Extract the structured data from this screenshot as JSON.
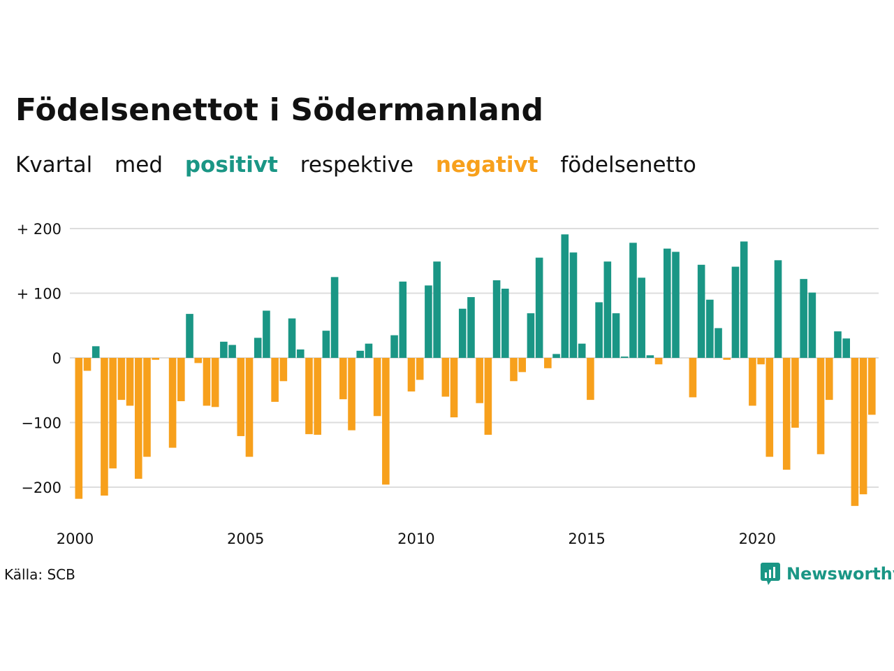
{
  "title": "Födelsenettot i Södermanland",
  "subtitle": {
    "w1": "Kvartal",
    "w2": "med",
    "positive": "positivt",
    "w3": "respektive",
    "negative": "negativt",
    "w4": "födelsenetto"
  },
  "source": "Källa: SCB",
  "brand": "Newsworthy",
  "colors": {
    "positive": "#1a9685",
    "negative": "#f7a01c",
    "grid": "#dddddd"
  },
  "chart_data": {
    "type": "bar",
    "title": "Födelsenettot i Södermanland",
    "xlabel": "",
    "ylabel": "",
    "ylim": [
      -230,
      210
    ],
    "yticks": [
      200,
      100,
      0,
      -100,
      -200
    ],
    "ytick_labels": [
      "+ 200",
      "+ 100",
      "0",
      "−100",
      "−200"
    ],
    "xticks": [
      2000,
      2005,
      2010,
      2015,
      2020
    ],
    "x_start": 2000,
    "values": [
      -218,
      -20,
      18,
      -213,
      -171,
      -65,
      -74,
      -187,
      -153,
      -3,
      0,
      -139,
      -67,
      68,
      -8,
      -74,
      -76,
      25,
      20,
      -121,
      -153,
      31,
      73,
      -68,
      -36,
      61,
      13,
      -118,
      -119,
      42,
      125,
      -64,
      -112,
      11,
      22,
      -90,
      -196,
      35,
      118,
      -52,
      -34,
      112,
      149,
      -60,
      -92,
      76,
      94,
      -70,
      -119,
      120,
      107,
      -36,
      -22,
      69,
      155,
      -16,
      6,
      191,
      163,
      22,
      -65,
      86,
      149,
      69,
      2,
      178,
      124,
      4,
      -10,
      169,
      164,
      0,
      -61,
      144,
      90,
      46,
      -3,
      141,
      180,
      -74,
      -10,
      -153,
      151,
      -173,
      -108,
      122,
      101,
      -149,
      -65,
      41,
      30,
      -229,
      -211,
      -88
    ],
    "grid": true,
    "legend": "none"
  }
}
